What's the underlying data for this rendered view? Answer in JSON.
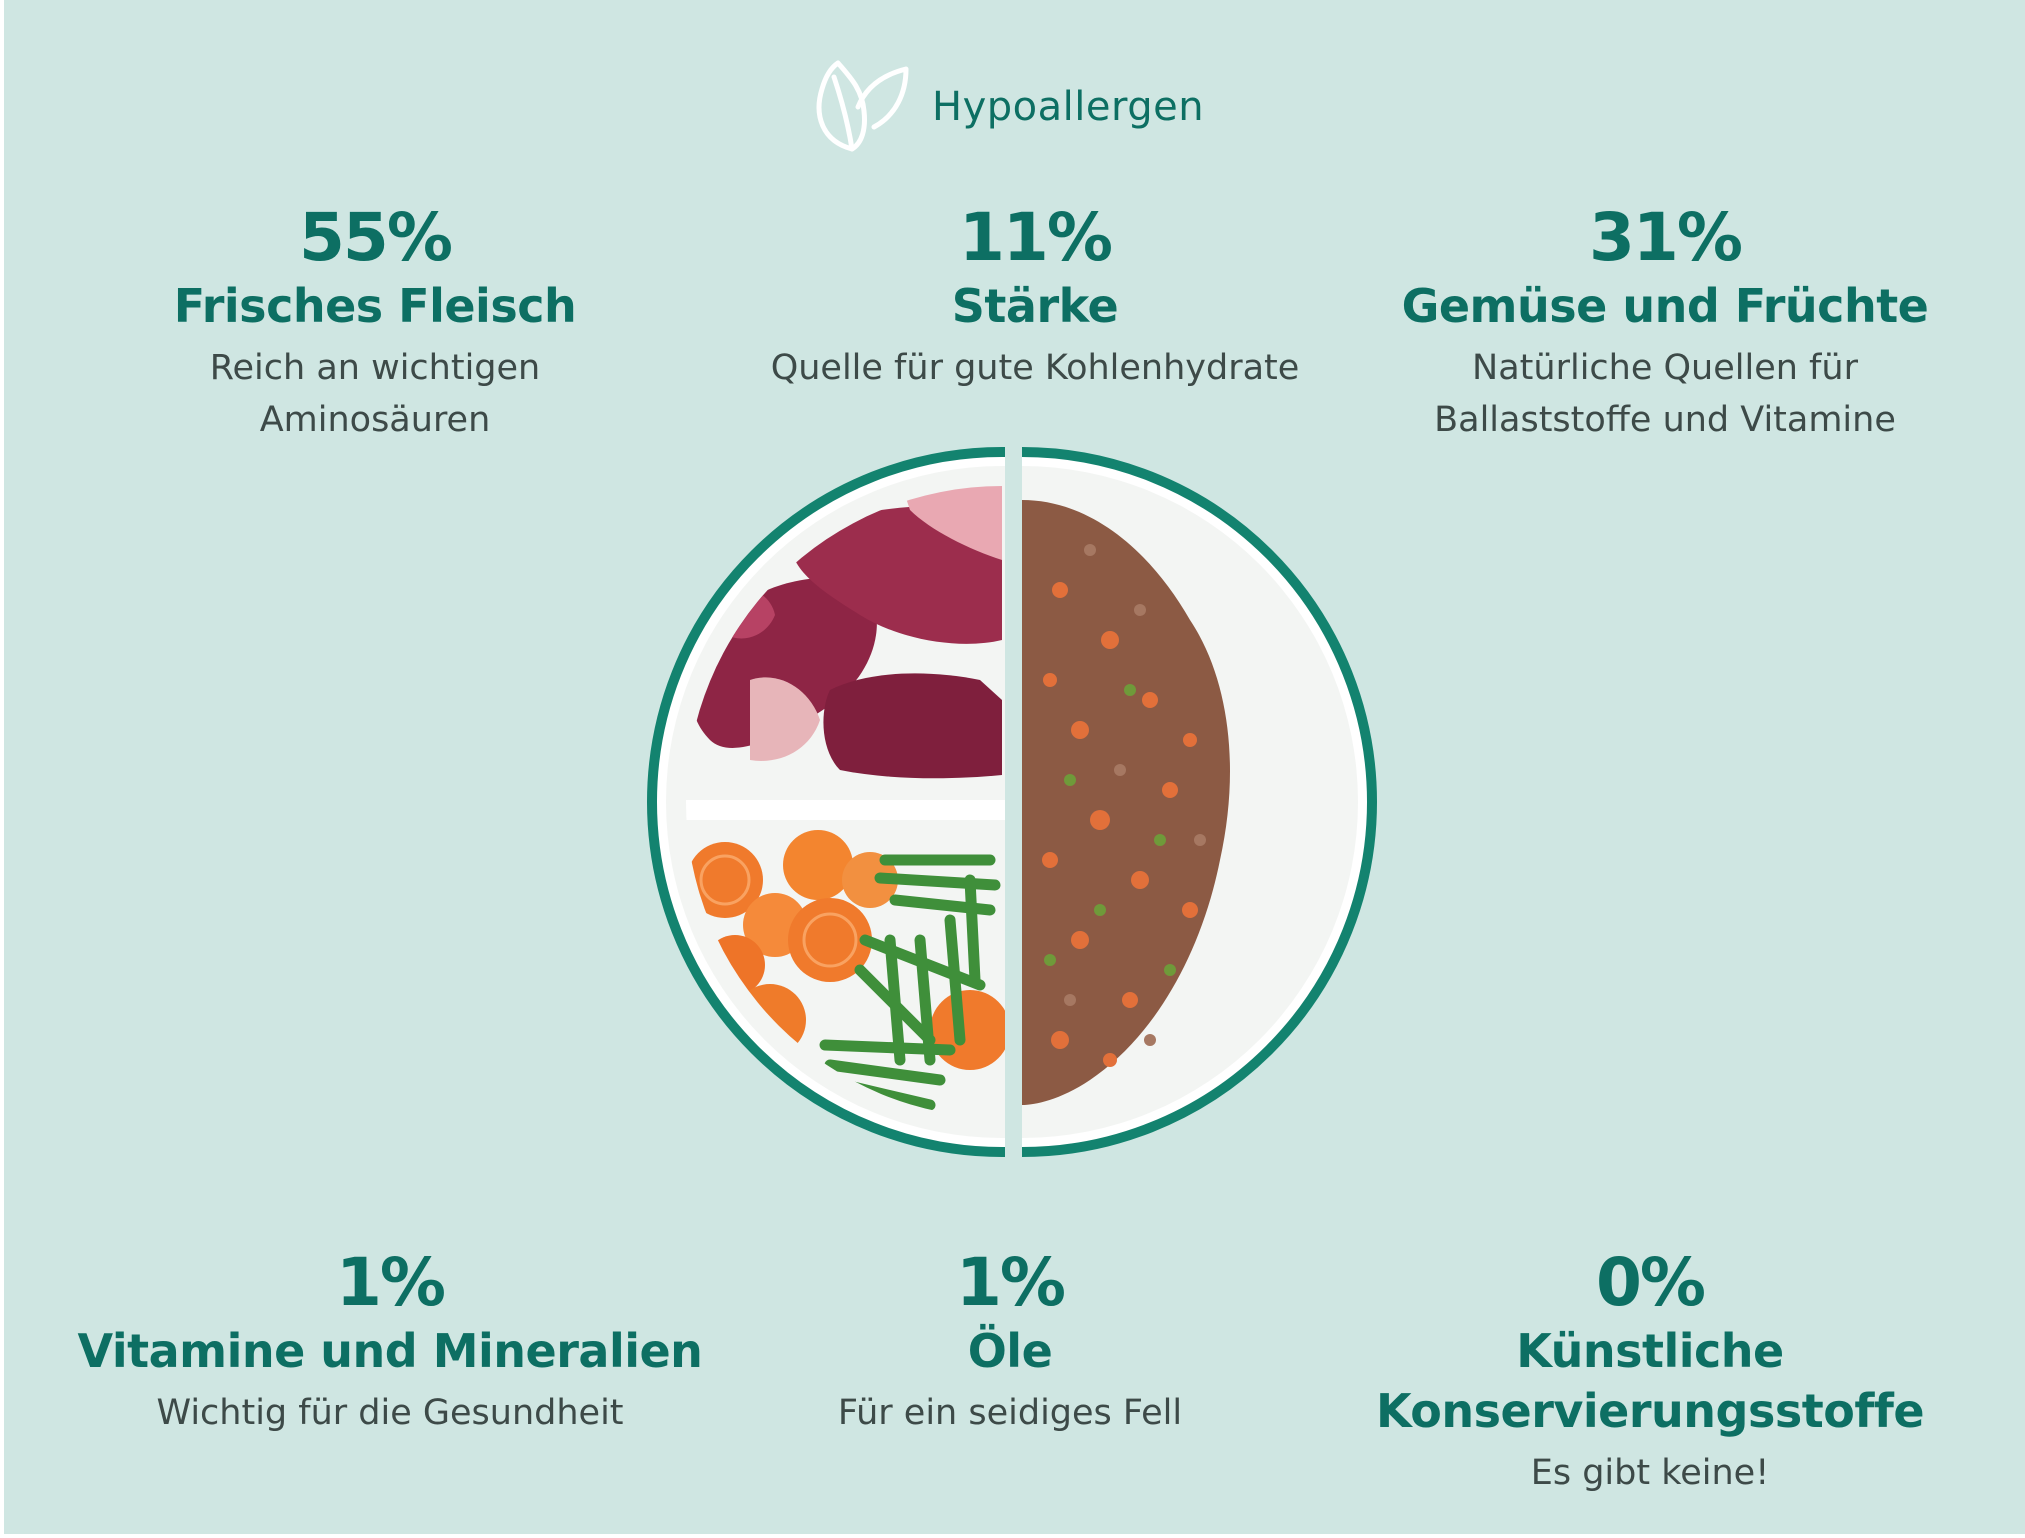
{
  "brand": {
    "text": "Hypoallergen",
    "icon": "leaf-icon",
    "color": "#0d6f63"
  },
  "colors": {
    "background": "#cfe6e2",
    "accent": "#0d6f63",
    "text": "#3d4a48"
  },
  "stats": [
    {
      "percent": "55%",
      "label": "Frisches Fleisch",
      "desc": [
        "Reich an wichtigen",
        "Aminosäuren"
      ]
    },
    {
      "percent": "11%",
      "label": "Stärke",
      "desc": [
        "Quelle für gute Kohlenhydrate"
      ]
    },
    {
      "percent": "31%",
      "label": "Gemüse und Früchte",
      "desc": [
        "Natürliche Quellen für",
        "Ballaststoffe und Vitamine"
      ]
    },
    {
      "percent": "1%",
      "label": "Vitamine und Mineralien",
      "desc": [
        "Wichtig für die Gesundheit"
      ]
    },
    {
      "percent": "1%",
      "label": "Öle",
      "desc": [
        "Für ein seidiges Fell"
      ]
    },
    {
      "percent": "0%",
      "label": [
        "Künstliche",
        "Konservierungsstoffe"
      ],
      "desc": [
        "Es gibt keine!"
      ]
    }
  ]
}
